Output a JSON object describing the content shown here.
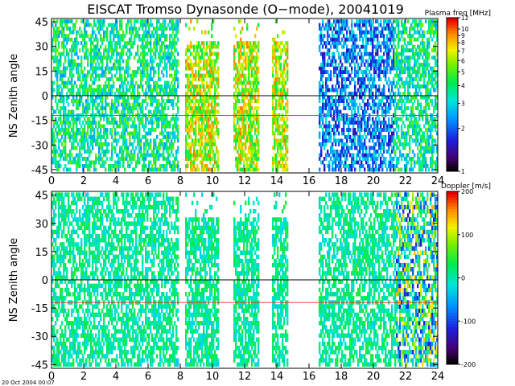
{
  "title": "EISCAT Tromso Dynasonde (O−mode),  20041019",
  "footer": "20 Oct 2004 00:07",
  "chart_data": [
    {
      "type": "heatmap",
      "ylabel": "NS Zenith angle",
      "xlim": [
        0,
        24
      ],
      "ylim": [
        -47,
        47
      ],
      "xticks": [
        0,
        2,
        4,
        6,
        8,
        10,
        12,
        14,
        16,
        18,
        20,
        22,
        24
      ],
      "yticks": [
        -45,
        -30,
        -15,
        0,
        15,
        30,
        45
      ],
      "reference_lines": [
        {
          "y": 0,
          "color": "#000000"
        },
        {
          "y": -12,
          "color": "#e8401c"
        }
      ],
      "colorbar": {
        "label": "Plasma freq [MHz]",
        "scale": "log",
        "range": [
          1,
          12
        ],
        "ticks": [
          1,
          2,
          3,
          4,
          5,
          6,
          7,
          8,
          9,
          10,
          12
        ]
      },
      "data_blocks_hours": [
        [
          0,
          7.8
        ],
        [
          8.3,
          8.7
        ],
        [
          8.7,
          10.3
        ],
        [
          11.3,
          12.8
        ],
        [
          13.7,
          14.6
        ],
        [
          16.6,
          21.3
        ],
        [
          21.3,
          24
        ]
      ]
    },
    {
      "type": "heatmap",
      "ylabel": "NS Zenith angle",
      "xlim": [
        0,
        24
      ],
      "ylim": [
        -47,
        47
      ],
      "xticks": [
        0,
        2,
        4,
        6,
        8,
        10,
        12,
        14,
        16,
        18,
        20,
        22,
        24
      ],
      "yticks": [
        -45,
        -30,
        -15,
        0,
        15,
        30,
        45
      ],
      "reference_lines": [
        {
          "y": 0,
          "color": "#000000"
        },
        {
          "y": -12,
          "color": "#e8401c"
        }
      ],
      "colorbar": {
        "label": "Doppler [m/s]",
        "scale": "linear",
        "range": [
          -200,
          200
        ],
        "ticks": [
          -200,
          -100,
          0,
          100,
          200
        ]
      },
      "data_blocks_hours": [
        [
          0,
          7.8
        ],
        [
          8.3,
          8.7
        ],
        [
          8.7,
          10.3
        ],
        [
          11.3,
          12.8
        ],
        [
          13.7,
          14.6
        ],
        [
          16.6,
          21.3
        ],
        [
          21.3,
          24
        ]
      ]
    }
  ]
}
